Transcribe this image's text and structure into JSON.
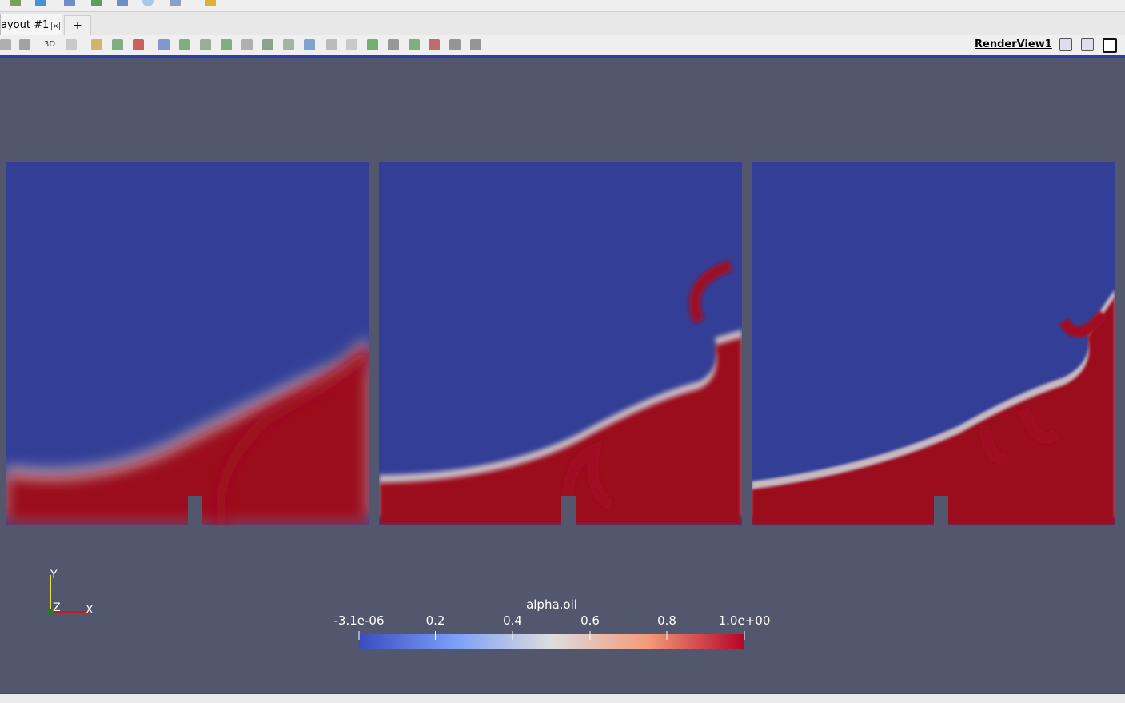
{
  "tabs": {
    "active": "ayout #1",
    "add": "+"
  },
  "toolbar": {
    "mode_3d": "3D",
    "view_name": "RenderView1"
  },
  "orientation_axes": {
    "y": "Y",
    "z": "Z",
    "x": "X"
  },
  "color_bar": {
    "title": "alpha.oil",
    "tick_labels": [
      "-3.1e-06",
      "0.2",
      "0.4",
      "0.6",
      "0.8",
      "1.0e+00"
    ]
  }
}
